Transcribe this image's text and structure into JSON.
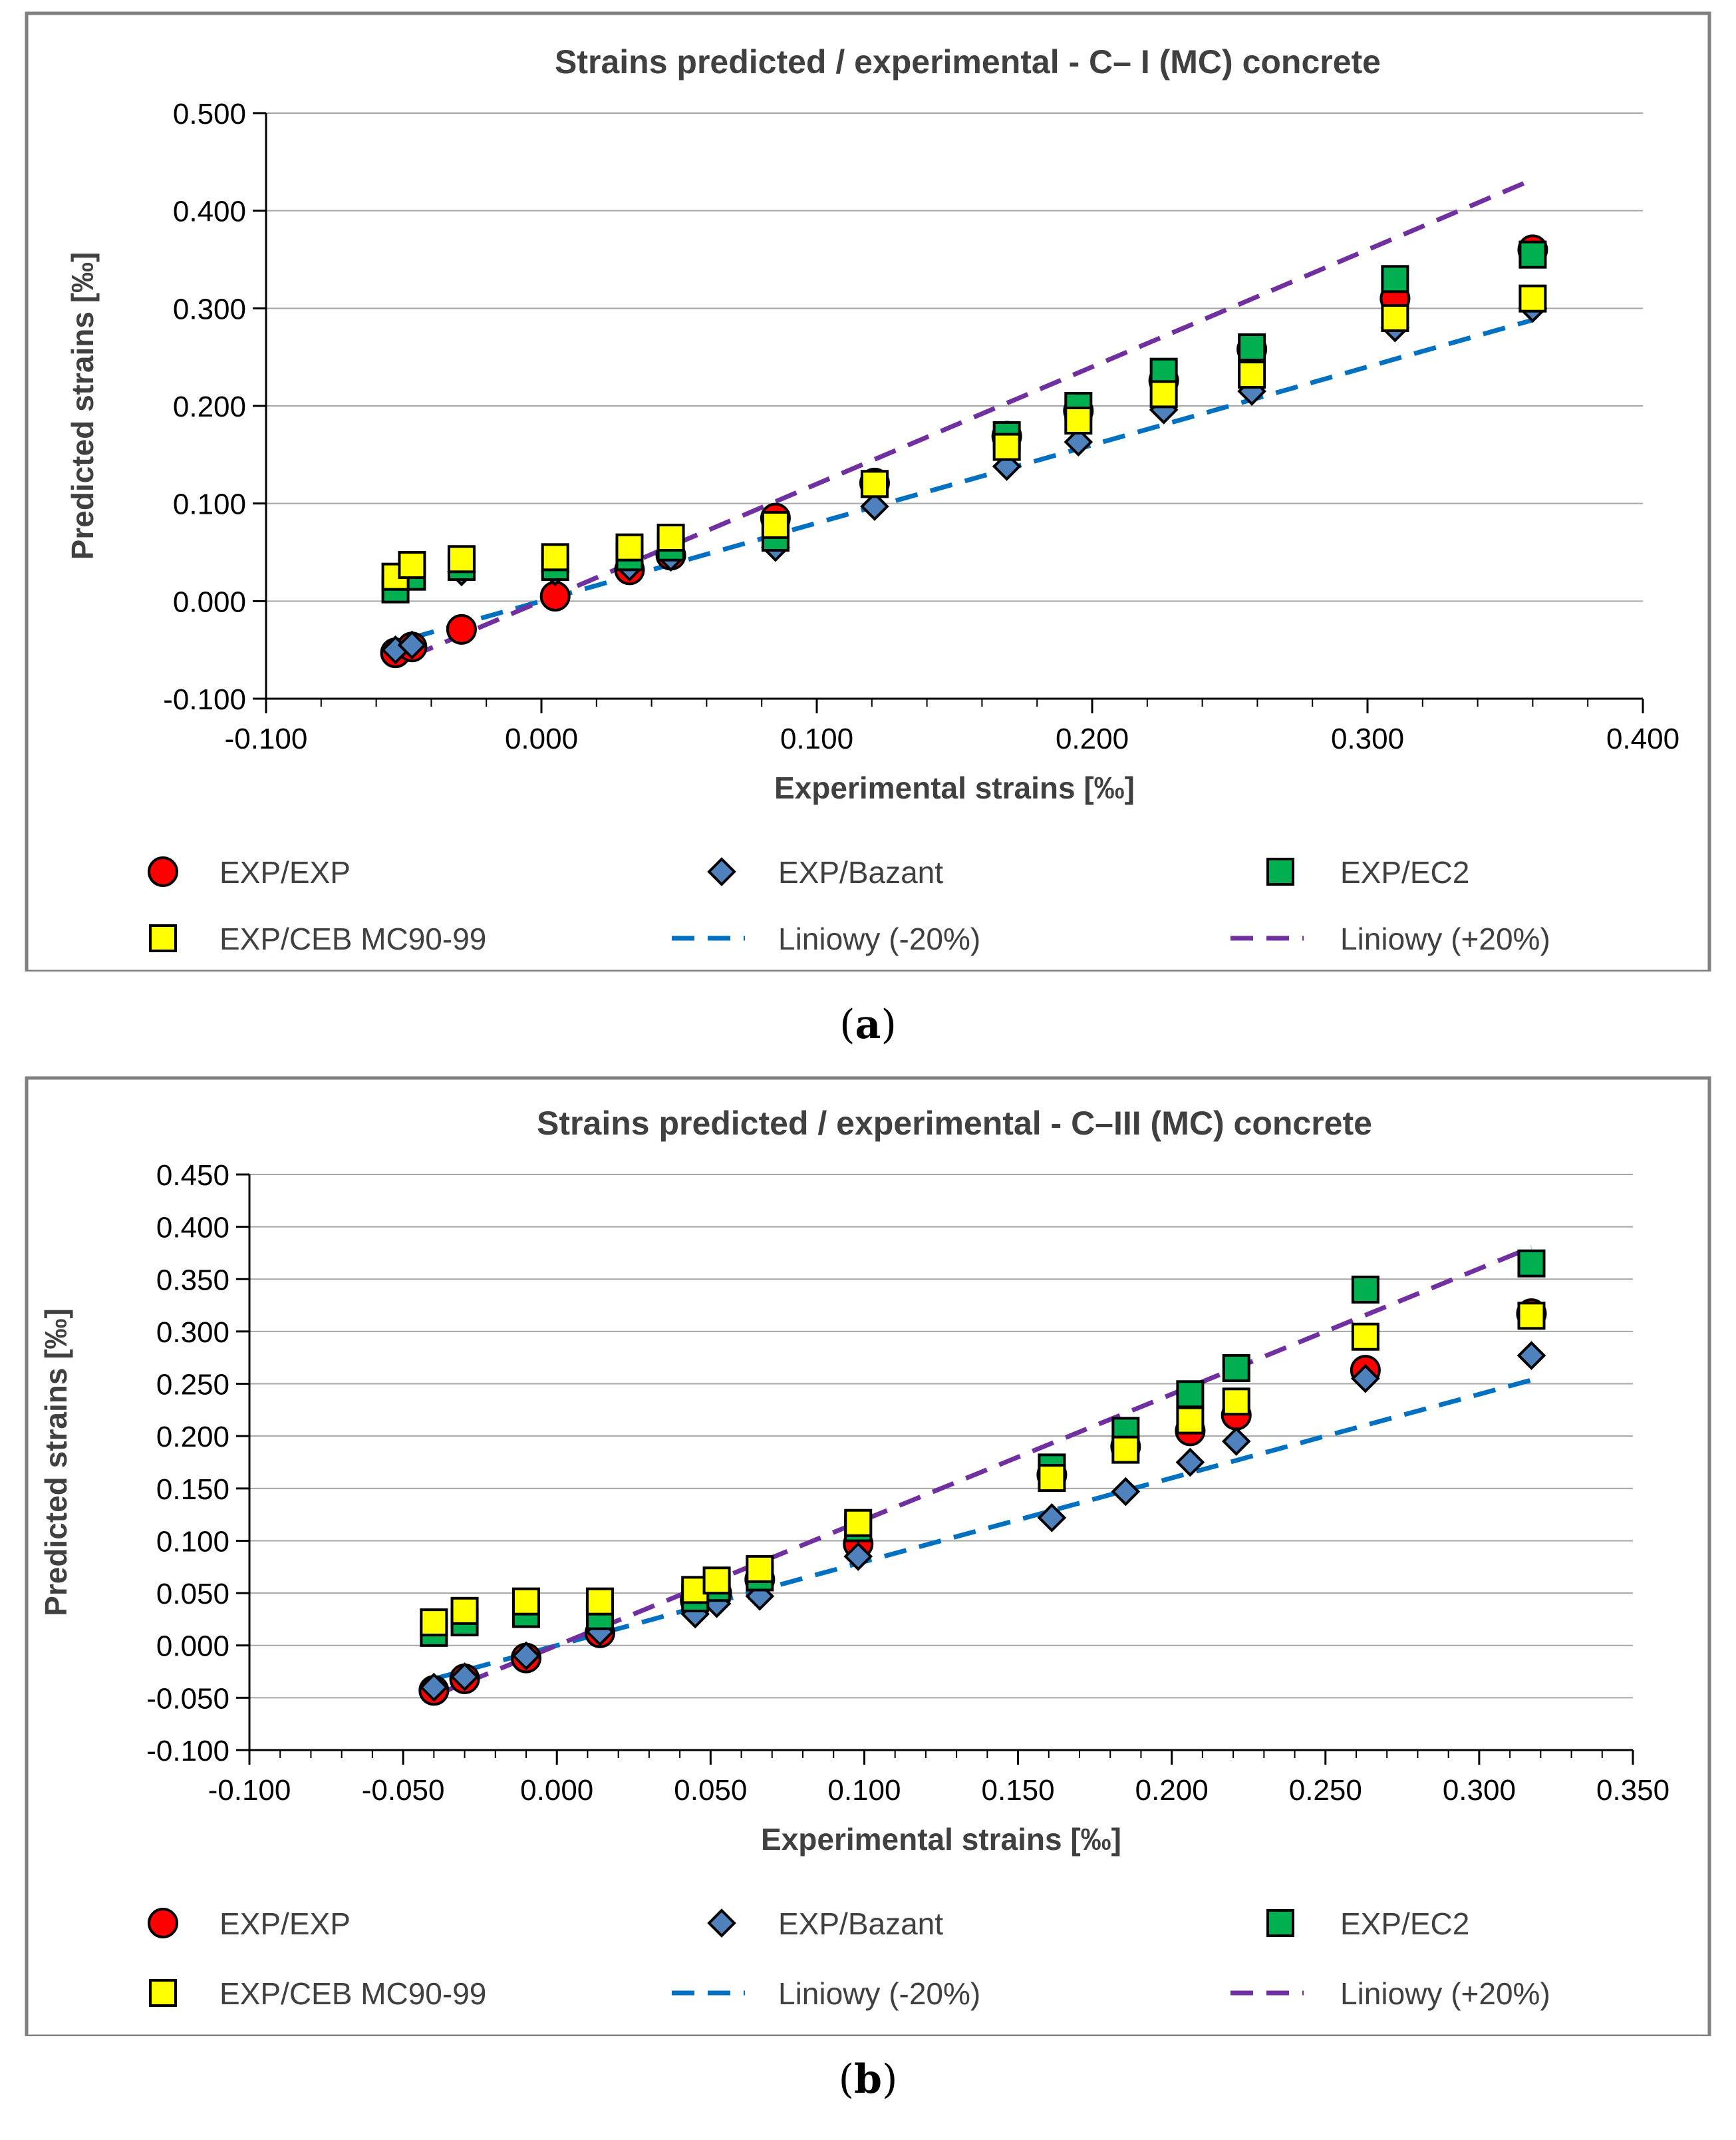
{
  "colors": {
    "exp_exp": "#ff0000",
    "bazant": "#4f81bd",
    "ec2": "#00b050",
    "ceb": "#ffff00",
    "minus20": "#0070c0",
    "plus20": "#7030a0",
    "gridline": "#a6a6a6",
    "frame": "#808080"
  },
  "panels": [
    {
      "label_open": "(",
      "label_letter": "a",
      "label_close": ")"
    },
    {
      "label_open": "(",
      "label_letter": "b",
      "label_close": ")"
    }
  ],
  "chart_data": [
    {
      "type": "scatter",
      "title": "Strains predicted / experimental - C– I (MC) concrete",
      "xlabel": "Experimental strains [‰]",
      "ylabel": "Predicted strains [‰]",
      "xlim": [
        -0.1,
        0.4
      ],
      "ylim": [
        -0.1,
        0.5
      ],
      "xticks": [
        "-0.100",
        "0.000",
        "0.100",
        "0.200",
        "0.300",
        "0.400"
      ],
      "yticks": [
        "0.500",
        "0.400",
        "0.300",
        "0.200",
        "0.100",
        "0.000",
        "-0.100"
      ],
      "grid": "horizontal",
      "legend_position": "bottom",
      "series": [
        {
          "name": "EXP/EXP",
          "marker": "circle",
          "color": "#ff0000",
          "points": [
            [
              -0.053,
              -0.053
            ],
            [
              -0.047,
              -0.047
            ],
            [
              -0.029,
              -0.029
            ],
            [
              0.005,
              0.005
            ],
            [
              0.032,
              0.032
            ],
            [
              0.047,
              0.047
            ],
            [
              0.085,
              0.085
            ],
            [
              0.121,
              0.121
            ],
            [
              0.169,
              0.169
            ],
            [
              0.195,
              0.195
            ],
            [
              0.226,
              0.226
            ],
            [
              0.258,
              0.258
            ],
            [
              0.31,
              0.31
            ],
            [
              0.36,
              0.36
            ]
          ]
        },
        {
          "name": "EXP/Bazant",
          "marker": "diamond",
          "color": "#4f81bd",
          "points": [
            [
              -0.053,
              -0.05
            ],
            [
              -0.047,
              -0.045
            ],
            [
              -0.029,
              0.03
            ],
            [
              0.005,
              0.03
            ],
            [
              0.032,
              0.035
            ],
            [
              0.047,
              0.045
            ],
            [
              0.085,
              0.055
            ],
            [
              0.121,
              0.097
            ],
            [
              0.169,
              0.138
            ],
            [
              0.195,
              0.163
            ],
            [
              0.226,
              0.196
            ],
            [
              0.258,
              0.215
            ],
            [
              0.31,
              0.28
            ],
            [
              0.36,
              0.3
            ]
          ]
        },
        {
          "name": "EXP/EC2",
          "marker": "square",
          "color": "#00b050",
          "points": [
            [
              -0.053,
              0.012
            ],
            [
              -0.047,
              0.025
            ],
            [
              -0.029,
              0.035
            ],
            [
              0.005,
              0.035
            ],
            [
              0.032,
              0.045
            ],
            [
              0.047,
              0.055
            ],
            [
              0.085,
              0.065
            ],
            [
              0.121,
              0.12
            ],
            [
              0.169,
              0.17
            ],
            [
              0.195,
              0.2
            ],
            [
              0.226,
              0.235
            ],
            [
              0.258,
              0.26
            ],
            [
              0.31,
              0.33
            ],
            [
              0.36,
              0.355
            ]
          ]
        },
        {
          "name": "EXP/CEB MC90-99",
          "marker": "square",
          "color": "#ffff00",
          "points": [
            [
              -0.053,
              0.025
            ],
            [
              -0.047,
              0.037
            ],
            [
              -0.029,
              0.043
            ],
            [
              0.005,
              0.045
            ],
            [
              0.032,
              0.055
            ],
            [
              0.047,
              0.065
            ],
            [
              0.085,
              0.078
            ],
            [
              0.121,
              0.12
            ],
            [
              0.169,
              0.158
            ],
            [
              0.195,
              0.185
            ],
            [
              0.226,
              0.212
            ],
            [
              0.258,
              0.232
            ],
            [
              0.31,
              0.29
            ],
            [
              0.36,
              0.31
            ]
          ]
        },
        {
          "name": "Liniowy (-20%)",
          "line": "dashed",
          "color": "#0070c0",
          "points": [
            [
              -0.047,
              -0.0376
            ],
            [
              0.36,
              0.288
            ]
          ]
        },
        {
          "name": "Liniowy (+20%)",
          "line": "dashed",
          "color": "#7030a0",
          "points": [
            [
              -0.047,
              -0.0564
            ],
            [
              0.36,
              0.432
            ]
          ]
        }
      ]
    },
    {
      "type": "scatter",
      "title": "Strains predicted / experimental - C–III (MC) concrete",
      "xlabel": "Experimental strains [‰]",
      "ylabel": "Predicted strains [‰]",
      "xlim": [
        -0.1,
        0.35
      ],
      "ylim": [
        -0.1,
        0.45
      ],
      "xticks": [
        "-0.100",
        "-0.050",
        "0.000",
        "0.050",
        "0.100",
        "0.150",
        "0.200",
        "0.250",
        "0.300",
        "0.350"
      ],
      "yticks": [
        "0.450",
        "0.400",
        "0.350",
        "0.300",
        "0.250",
        "0.200",
        "0.150",
        "0.100",
        "0.050",
        "0.000",
        "-0.050",
        "-0.100"
      ],
      "grid": "horizontal",
      "legend_position": "bottom",
      "series": [
        {
          "name": "EXP/EXP",
          "marker": "circle",
          "color": "#ff0000",
          "points": [
            [
              -0.04,
              -0.043
            ],
            [
              -0.03,
              -0.032
            ],
            [
              -0.01,
              -0.012
            ],
            [
              0.014,
              0.012
            ],
            [
              0.045,
              0.043
            ],
            [
              0.052,
              0.05
            ],
            [
              0.066,
              0.063
            ],
            [
              0.098,
              0.097
            ],
            [
              0.161,
              0.163
            ],
            [
              0.185,
              0.19
            ],
            [
              0.206,
              0.205
            ],
            [
              0.221,
              0.22
            ],
            [
              0.263,
              0.263
            ],
            [
              0.317,
              0.317
            ]
          ]
        },
        {
          "name": "EXP/Bazant",
          "marker": "diamond",
          "color": "#4f81bd",
          "points": [
            [
              -0.04,
              -0.04
            ],
            [
              -0.03,
              -0.03
            ],
            [
              -0.01,
              -0.01
            ],
            [
              0.014,
              0.013
            ],
            [
              0.045,
              0.03
            ],
            [
              0.052,
              0.04
            ],
            [
              0.066,
              0.047
            ],
            [
              0.098,
              0.085
            ],
            [
              0.161,
              0.122
            ],
            [
              0.185,
              0.147
            ],
            [
              0.206,
              0.175
            ],
            [
              0.221,
              0.195
            ],
            [
              0.263,
              0.255
            ],
            [
              0.317,
              0.277
            ]
          ]
        },
        {
          "name": "EXP/EC2",
          "marker": "square",
          "color": "#00b050",
          "points": [
            [
              -0.04,
              0.012
            ],
            [
              -0.03,
              0.022
            ],
            [
              -0.01,
              0.03
            ],
            [
              0.014,
              0.028
            ],
            [
              0.045,
              0.045
            ],
            [
              0.052,
              0.055
            ],
            [
              0.066,
              0.065
            ],
            [
              0.098,
              0.112
            ],
            [
              0.161,
              0.17
            ],
            [
              0.185,
              0.205
            ],
            [
              0.206,
              0.24
            ],
            [
              0.221,
              0.265
            ],
            [
              0.263,
              0.34
            ],
            [
              0.317,
              0.365
            ]
          ]
        },
        {
          "name": "EXP/CEB MC90-99",
          "marker": "square",
          "color": "#ffff00",
          "points": [
            [
              -0.04,
              0.022
            ],
            [
              -0.03,
              0.033
            ],
            [
              -0.01,
              0.042
            ],
            [
              0.014,
              0.042
            ],
            [
              0.045,
              0.053
            ],
            [
              0.052,
              0.062
            ],
            [
              0.066,
              0.073
            ],
            [
              0.098,
              0.117
            ],
            [
              0.161,
              0.16
            ],
            [
              0.185,
              0.187
            ],
            [
              0.206,
              0.215
            ],
            [
              0.221,
              0.233
            ],
            [
              0.263,
              0.295
            ],
            [
              0.317,
              0.315
            ]
          ]
        },
        {
          "name": "Liniowy (-20%)",
          "line": "dashed",
          "color": "#0070c0",
          "points": [
            [
              -0.04,
              -0.032
            ],
            [
              0.317,
              0.2536
            ]
          ]
        },
        {
          "name": "Liniowy (+20%)",
          "line": "dashed",
          "color": "#7030a0",
          "points": [
            [
              -0.04,
              -0.048
            ],
            [
              0.317,
              0.3804
            ]
          ]
        }
      ]
    }
  ]
}
